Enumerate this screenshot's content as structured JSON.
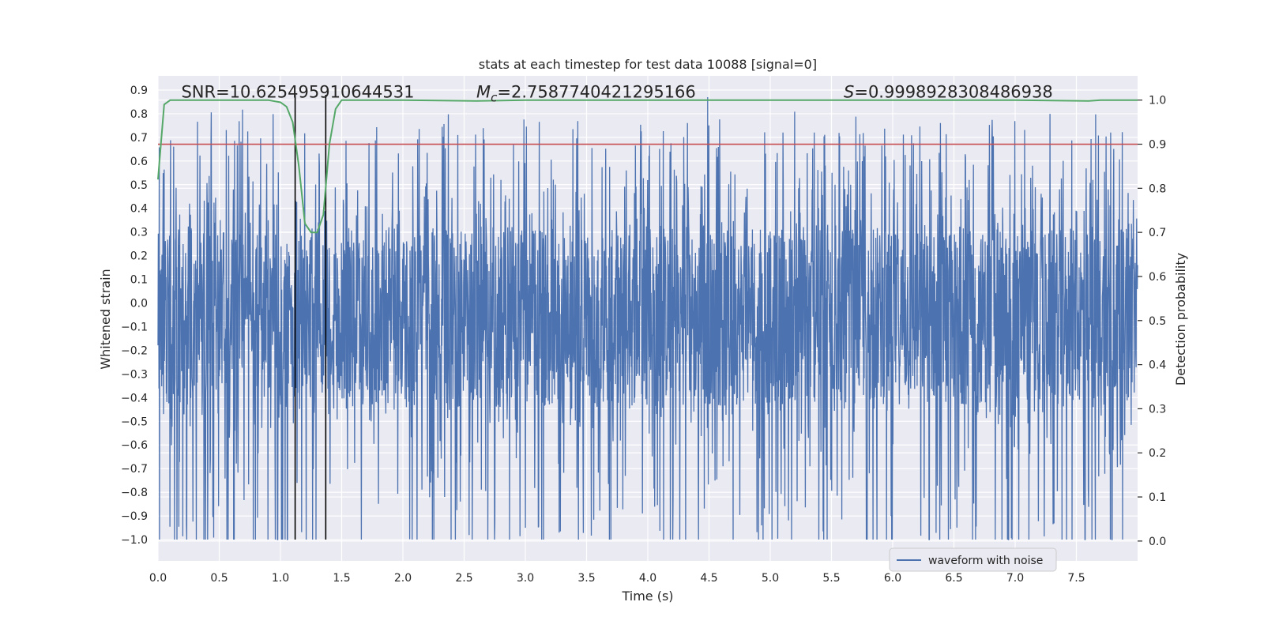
{
  "chart_data": {
    "type": "line",
    "title": "stats at each timestep for test data 10088 [signal=0]",
    "xlabel": "Time (s)",
    "ylabel_left": "Whitened strain",
    "ylabel_right": "Detection probability",
    "xlim": [
      0.0,
      8.0
    ],
    "ylim_left": [
      -1.09,
      0.96
    ],
    "ylim_right": [
      -0.045,
      1.055
    ],
    "x_ticks": [
      "0.0",
      "0.5",
      "1.0",
      "1.5",
      "2.0",
      "2.5",
      "3.0",
      "3.5",
      "4.0",
      "4.5",
      "5.0",
      "5.5",
      "6.0",
      "6.5",
      "7.0",
      "7.5"
    ],
    "x_tick_values": [
      0.0,
      0.5,
      1.0,
      1.5,
      2.0,
      2.5,
      3.0,
      3.5,
      4.0,
      4.5,
      5.0,
      5.5,
      6.0,
      6.5,
      7.0,
      7.5
    ],
    "left_ticks": [
      "0.9",
      "0.8",
      "0.7",
      "0.6",
      "0.5",
      "0.4",
      "0.3",
      "0.2",
      "0.1",
      "0.0",
      "−0.1",
      "−0.2",
      "−0.3",
      "−0.4",
      "−0.5",
      "−0.6",
      "−0.7",
      "−0.8",
      "−0.9",
      "−1.0"
    ],
    "left_tick_values": [
      0.9,
      0.8,
      0.7,
      0.6,
      0.5,
      0.4,
      0.3,
      0.2,
      0.1,
      0.0,
      -0.1,
      -0.2,
      -0.3,
      -0.4,
      -0.5,
      -0.6,
      -0.7,
      -0.8,
      -0.9,
      -1.0
    ],
    "right_ticks": [
      "1.0",
      "0.9",
      "0.8",
      "0.7",
      "0.6",
      "0.5",
      "0.4",
      "0.3",
      "0.2",
      "0.1",
      "0.0"
    ],
    "right_tick_values": [
      1.0,
      0.9,
      0.8,
      0.7,
      0.6,
      0.5,
      0.4,
      0.3,
      0.2,
      0.1,
      0.0
    ],
    "annotations": {
      "snr": "SNR=10.625495910644531",
      "mc_symbol": "M",
      "mc_subscript": "c",
      "mc_value": "=2.7587740421295166",
      "s_symbol": "S",
      "s_value": "=0.9998928308486938"
    },
    "annotation_positions_data": {
      "snr_x": 0.19,
      "mc_x": 2.6,
      "s_x": 5.6,
      "y_left": 0.895
    },
    "threshold": {
      "value": 0.9,
      "axis": "right",
      "color": "#c44e52"
    },
    "vertical_lines": [
      1.12,
      1.37
    ],
    "vertical_line_range_left": [
      -1.0,
      0.88
    ],
    "waveform": {
      "name": "waveform with noise",
      "color": "#4c72b0",
      "duration": 8.0,
      "n_samples": 3200,
      "dense_band": [
        -0.43,
        0.31
      ],
      "max_peak": 0.87,
      "min_peak": -1.0
    },
    "detection_probability": {
      "color": "#55a868",
      "x": [
        0.0,
        0.05,
        0.1,
        0.2,
        0.3,
        0.5,
        0.7,
        0.9,
        1.0,
        1.05,
        1.1,
        1.15,
        1.2,
        1.25,
        1.3,
        1.35,
        1.4,
        1.45,
        1.5,
        1.6,
        2.0,
        2.6,
        3.0,
        3.3,
        4.0,
        4.5,
        5.0,
        6.0,
        7.0,
        7.6,
        7.7,
        8.0
      ],
      "y": [
        0.82,
        0.99,
        1.0,
        1.0,
        1.0,
        1.0,
        1.0,
        1.0,
        0.995,
        0.985,
        0.95,
        0.85,
        0.72,
        0.7,
        0.7,
        0.74,
        0.9,
        0.98,
        1.0,
        1.0,
        1.0,
        0.998,
        1.0,
        1.0,
        1.0,
        1.0,
        1.0,
        1.0,
        1.0,
        0.998,
        1.0,
        1.0
      ]
    },
    "legend": {
      "label": "waveform with noise",
      "position": "lower-right"
    },
    "grid": true,
    "colors": {
      "background": "#eaeaf2",
      "grid": "#ffffff",
      "text": "#262626",
      "vline": "#000000"
    }
  }
}
